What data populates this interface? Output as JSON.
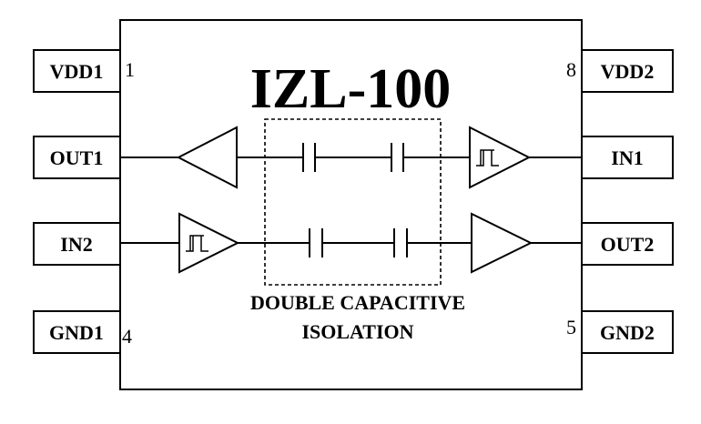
{
  "chip": {
    "title": "IZL-100",
    "isolation_label_line1": "DOUBLE CAPACITIVE",
    "isolation_label_line2": "ISOLATION"
  },
  "pins": {
    "vdd1": "VDD1",
    "out1": "OUT1",
    "in2": "IN2",
    "gnd1": "GND1",
    "vdd2": "VDD2",
    "in1": "IN1",
    "out2": "OUT2",
    "gnd2": "GND2"
  },
  "pin_numbers": {
    "vdd1": "1",
    "gnd1": "4",
    "vdd2": "8",
    "gnd2": "5"
  },
  "colors": {
    "stroke": "#000000",
    "background": "#ffffff"
  }
}
